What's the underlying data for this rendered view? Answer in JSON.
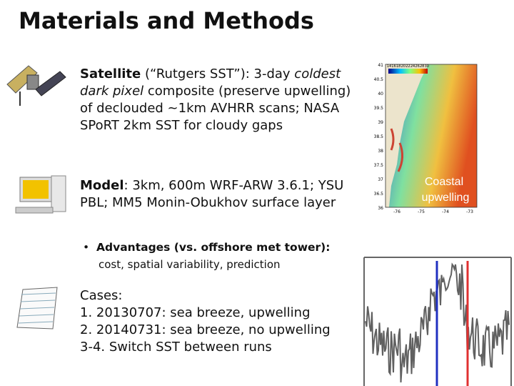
{
  "header": {
    "title": "Materials and Methods"
  },
  "satellite": {
    "label": "Satellite",
    "text1": " (“Rutgers SST”): 3-day ",
    "italic": "coldest dark pixel",
    "text2": " composite (preserve upwelling) of declouded ~1km AVHRR scans; NASA SPoRT 2km SST for cloudy gaps"
  },
  "model": {
    "label": "Model",
    "text": ": 3km, 600m WRF-ARW 3.6.1; YSU PBL;  MM5 Monin-Obukhov surface layer"
  },
  "advantages": {
    "bullet": "•",
    "label": "Advantages (vs. offshore met tower):",
    "text": "cost, spatial variability, prediction"
  },
  "cases": {
    "label": "Cases:",
    "items": [
      "1.  20130707: sea breeze, upwelling",
      "2.  20140731: sea breeze, no upwelling",
      "3-4. Switch SST between runs"
    ]
  },
  "map": {
    "annotation": "Coastal upwelling",
    "colorbar_labels": [
      "14",
      "16",
      "18",
      "20",
      "22",
      "24",
      "26",
      "28",
      "30"
    ],
    "lat_labels": [
      "41",
      "40.5",
      "40",
      "39.5",
      "39",
      "38.5",
      "38",
      "37.5",
      "37",
      "36.5",
      "36"
    ],
    "lon_labels": [
      "-76",
      "-75",
      "-74",
      "-73"
    ]
  }
}
